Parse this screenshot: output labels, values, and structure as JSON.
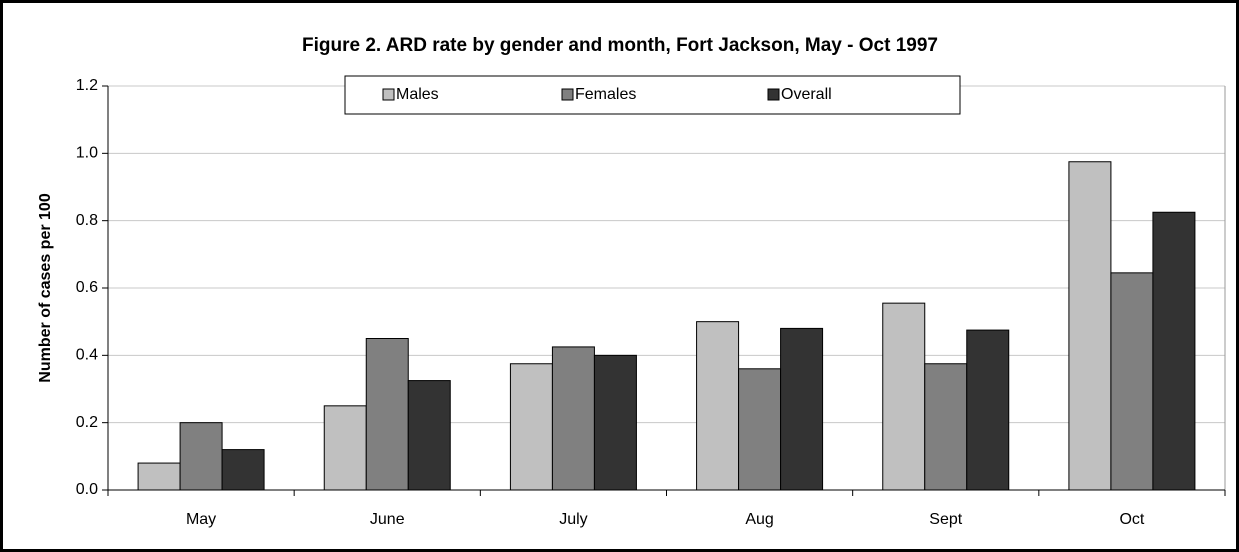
{
  "chart_data": {
    "type": "bar",
    "title": "Figure 2.  ARD rate by gender and month, Fort Jackson, May - Oct 1997",
    "y_label": "Number of cases per 100",
    "categories": [
      "May",
      "June",
      "July",
      "Aug",
      "Sept",
      "Oct"
    ],
    "series": [
      {
        "name": "Males",
        "color": "#c0c0c0",
        "values": [
          0.08,
          0.25,
          0.375,
          0.5,
          0.555,
          0.975
        ]
      },
      {
        "name": "Females",
        "color": "#808080",
        "values": [
          0.2,
          0.45,
          0.425,
          0.36,
          0.375,
          0.645
        ]
      },
      {
        "name": "Overall",
        "color": "#333333",
        "values": [
          0.12,
          0.325,
          0.4,
          0.48,
          0.475,
          0.825
        ]
      }
    ],
    "ylim": [
      0,
      1.2
    ],
    "yticks": [
      {
        "value": 0,
        "label": "0.0"
      },
      0.2,
      0.4,
      0.6,
      0.8,
      {
        "value": 1,
        "label": "1.0"
      },
      1.2
    ],
    "grid": true,
    "legend": "top"
  }
}
